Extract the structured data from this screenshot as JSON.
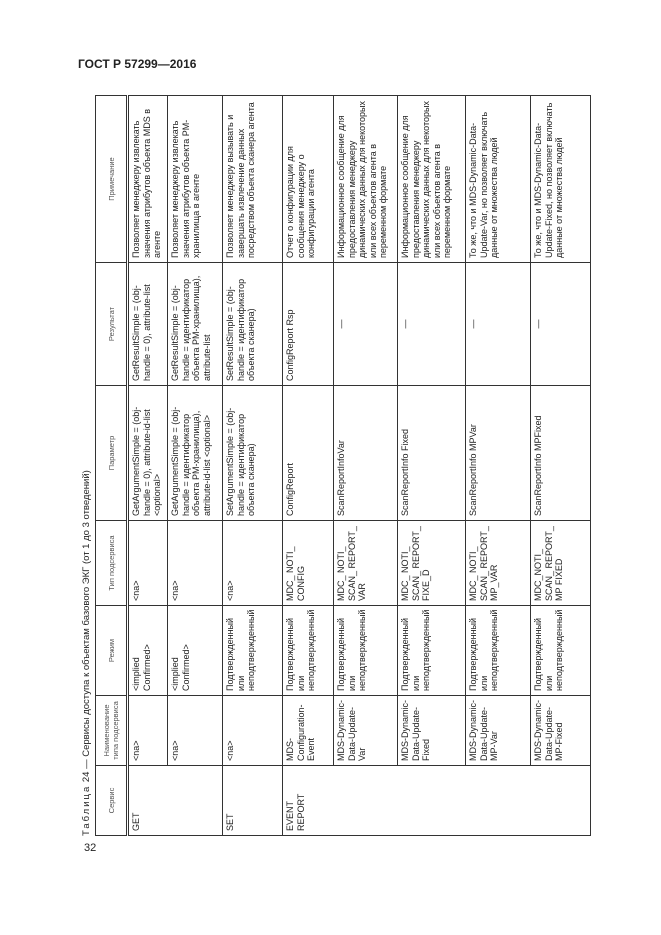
{
  "header": "ГОСТ Р 57299—2016",
  "page_number": "32",
  "caption": {
    "prefix": "Таблица",
    "text": " 24 — Сервисы доступа к объектам базового ЭКГ (от 1 до 3 отведений)"
  },
  "columns": [
    "Сервис",
    "Наименование типа подсервиса",
    "Режим",
    "Тип подсервиса",
    "Параметр",
    "Результат",
    "Примечание"
  ],
  "rows": [
    {
      "service": "GET",
      "name": "<na>",
      "mode": "<implied Confirmed>",
      "type": "<na>",
      "param": "GetArgumentSimple = (obj-handle = 0), attribute-id-list <optional>",
      "result": "GetResultSimple = (obj-handle = 0), attribute-list",
      "note": "Позволяет менеджеру извлекать значения атрибутов объекта MDS в агенте"
    },
    {
      "name": "<na>",
      "mode": "<implied Confirmed>",
      "type": "<na>",
      "param": "GetArgumentSimple = (obj-handle = идентификатор объекта PM-хранилища), attribute-id-list <optional>",
      "result": "GetResultSimple = (obj-handle = идентификатор объекта PM-хранилища), attribute-list",
      "note": "Позволяет менеджеру извлекать значения атрибутов объекта PM-хранилища в агенте"
    },
    {
      "service": "SET",
      "name": "<na>",
      "mode": "Подтвержденный или неподтвержденный",
      "type": "<na>",
      "param": "SetArgumentSimple = (obj-handle = идентификатор объекта сканера)",
      "result": "SetResultSimple = (obj-handle = идентификатор объекта сканера)",
      "note": "Позволяет менеджеру вызывать и завершать извлечение данных посредством объекта сканера агента"
    },
    {
      "service": "EVENT REPORT",
      "name": "MDS-Configuration-Event",
      "mode": "Подтвержденный или неподтвержденный",
      "type": "MDC_ NOTI_ CONFIG",
      "param": "ConfigReport",
      "result": "ConfigReport Rsp",
      "note": "Отчет о конфигурации для сообщения менеджеру о конфигурации агента"
    },
    {
      "name": "MDS-Dynamic-Data-Update-Var",
      "mode": "Подтвержденный или неподтвержденный",
      "type": "MDC_ NOTI_ SCAN_ REPORT_ VAR",
      "param": "ScanReportInfoVar",
      "result": "—",
      "note": "Информационное сообщение для предоставления менеджеру динамических данных для некоторых или всех объектов агента в переменном формате"
    },
    {
      "name": "MDS-Dynamic-Data-Update-Fixed",
      "mode": "Подтвержденный или неподтвержденный",
      "type": "MDC_ NOTI_ SCAN_ REPORT_ FIXE_D",
      "param": "ScanReportInfo Fixed",
      "result": "—",
      "note": "Информационное сообщение для предоставления менеджеру динамических данных для некоторых или всех объектов агента в переменном формате"
    },
    {
      "name": "MDS-Dynamic-Data-Update-MP-Var",
      "mode": "Подтвержденный или неподтвержденный",
      "type": "MDC_ NOTI_ SCAN_ REPORT_ MP_VAR",
      "param": "ScanReportInfo MPVar",
      "result": "—",
      "note": "То же, что и MDS-Dynamic-Data-Update-Var, но позволяет включать данные от множества людей"
    },
    {
      "name": "MDS-Dynamic-Data-Update-MP-Fixed",
      "mode": "Подтвержденный или неподтвержденный",
      "type": "MDC_NOTI_ SCAN_ REPORT_ MP FIXED",
      "param": "ScanReportInfo MPFixed",
      "result": "—",
      "note": "То же, что и MDS-Dynamic-Data-Update-Fixed, но позволяет включать данные от множества людей"
    }
  ]
}
